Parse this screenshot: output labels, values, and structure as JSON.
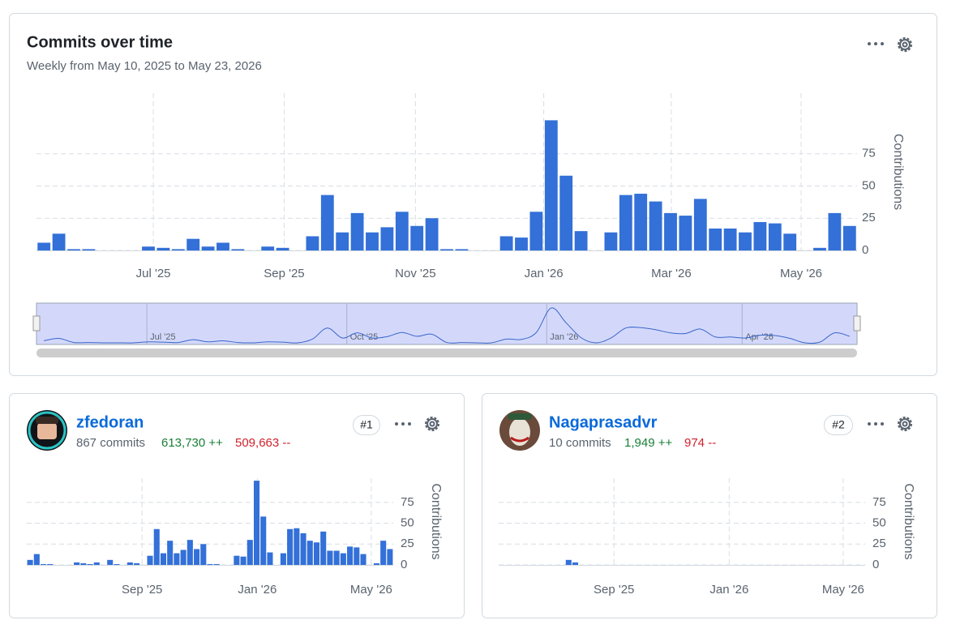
{
  "chart_data": [
    {
      "type": "bar",
      "title": "Commits over time",
      "subtitle": "Weekly from May 10, 2025 to May 23, 2026",
      "values": [
        6,
        13,
        1,
        1,
        0,
        0,
        0,
        3,
        2,
        1,
        9,
        3,
        6,
        1,
        0,
        3,
        2,
        0,
        11,
        43,
        14,
        29,
        14,
        18,
        30,
        19,
        25,
        1,
        1,
        0,
        0,
        11,
        10,
        30,
        101,
        58,
        15,
        0,
        14,
        43,
        44,
        38,
        29,
        27,
        40,
        17,
        17,
        14,
        22,
        21,
        13,
        0,
        2,
        29,
        19
      ],
      "color": "#3370d8",
      "y_label": "Contributions",
      "grid": true,
      "xlim": [
        0,
        55
      ],
      "xticks": [
        {
          "value": 7.83,
          "label": "Jul '25"
        },
        {
          "value": 16.6,
          "label": "Sep '25"
        },
        {
          "value": 25.4,
          "label": "Nov '25"
        },
        {
          "value": 34.0,
          "label": "Jan '26"
        },
        {
          "value": 42.55,
          "label": "Mar '26"
        },
        {
          "value": 51.25,
          "label": "May '26"
        }
      ],
      "ylim": [
        0,
        122
      ],
      "yticks": [
        0,
        25,
        50,
        75
      ],
      "navigator_ticks": [
        {
          "value": 7.4,
          "label": "Jul '25"
        },
        {
          "value": 20.8,
          "label": "Oct '25"
        },
        {
          "value": 34.2,
          "label": "Jan '26"
        },
        {
          "value": 47.3,
          "label": "Apr '26"
        }
      ]
    },
    {
      "type": "bar",
      "values": [
        6,
        13,
        1,
        1,
        0,
        0,
        0,
        3,
        2,
        1,
        3,
        0,
        6,
        1,
        0,
        3,
        2,
        0,
        11,
        43,
        14,
        29,
        14,
        18,
        30,
        19,
        25,
        1,
        1,
        0,
        0,
        11,
        10,
        30,
        101,
        58,
        15,
        0,
        14,
        43,
        44,
        38,
        29,
        27,
        40,
        17,
        17,
        14,
        22,
        21,
        13,
        0,
        2,
        29,
        19
      ],
      "color": "#3370d8",
      "y_label": "Contributions",
      "grid": true,
      "xlim": [
        0,
        55
      ],
      "xticks": [
        {
          "value": 17.3,
          "label": "Sep '25"
        },
        {
          "value": 34.6,
          "label": "Jan '26"
        },
        {
          "value": 51.7,
          "label": "May '26"
        }
      ],
      "ylim": [
        0,
        104
      ],
      "yticks": [
        0,
        25,
        50,
        75
      ]
    },
    {
      "type": "bar",
      "values": [
        0,
        0,
        0,
        0,
        0,
        0,
        0,
        0,
        0,
        0,
        6,
        3,
        0,
        0,
        0,
        0,
        0,
        0,
        0,
        0,
        0,
        0,
        0,
        0,
        0,
        0,
        0,
        0,
        0,
        0,
        0,
        0,
        0,
        0,
        0,
        0,
        0,
        0,
        0,
        0,
        0,
        0,
        0,
        0,
        0,
        0,
        0,
        0,
        0,
        0,
        0,
        0,
        0,
        0,
        0
      ],
      "color": "#3370d8",
      "y_label": "Contributions",
      "grid": true,
      "xlim": [
        0,
        55
      ],
      "xticks": [
        {
          "value": 17.3,
          "label": "Sep '25"
        },
        {
          "value": 34.6,
          "label": "Jan '26"
        },
        {
          "value": 51.7,
          "label": "May '26"
        }
      ],
      "ylim": [
        0,
        104
      ],
      "yticks": [
        0,
        25,
        50,
        75
      ]
    }
  ],
  "contributors": [
    {
      "name": "zfedoran",
      "commits": "867 commits",
      "additions": "613,730 ++",
      "deletions": "509,663 --",
      "rank": "#1"
    },
    {
      "name": "Nagaprasadvr",
      "commits": "10 commits",
      "additions": "1,949 ++",
      "deletions": "974 --",
      "rank": "#2"
    }
  ]
}
